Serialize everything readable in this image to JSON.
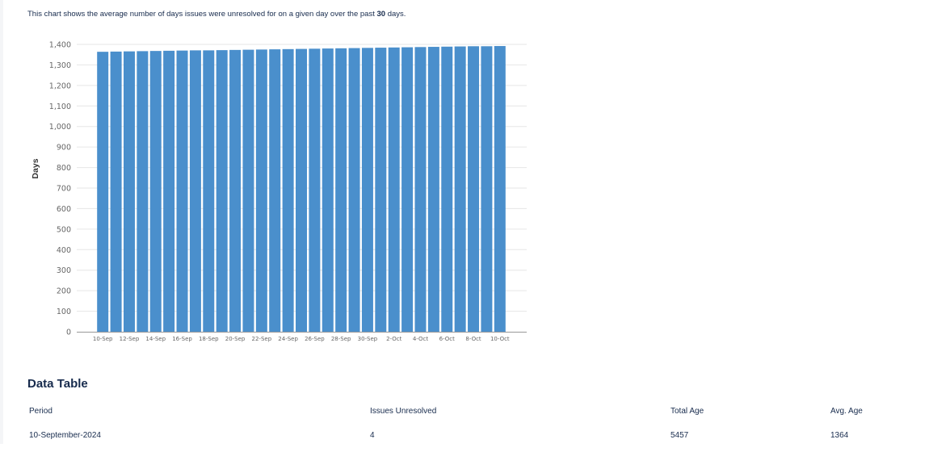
{
  "description": {
    "prefix": "This chart shows the average number of days issues were unresolved for on a given day over the past ",
    "bold": "30",
    "suffix": " days."
  },
  "colors": {
    "bar": "#4a8fcc",
    "grid": "#e6e6e6",
    "axis": "#999999",
    "text": "#172b4d"
  },
  "chart_data": {
    "type": "bar",
    "title": "",
    "xlabel": "",
    "ylabel": "Days",
    "ylim": [
      0,
      1400
    ],
    "yticks": [
      0,
      100,
      200,
      300,
      400,
      500,
      600,
      700,
      800,
      900,
      1000,
      1100,
      1200,
      1300,
      1400
    ],
    "ytick_labels": [
      "0",
      "100",
      "200",
      "300",
      "400",
      "500",
      "600",
      "700",
      "800",
      "900",
      "1,000",
      "1,100",
      "1,200",
      "1,300",
      "1,400"
    ],
    "grid": true,
    "legend": null,
    "categories": [
      "10-Sep",
      "11-Sep",
      "12-Sep",
      "13-Sep",
      "14-Sep",
      "15-Sep",
      "16-Sep",
      "17-Sep",
      "18-Sep",
      "19-Sep",
      "20-Sep",
      "21-Sep",
      "22-Sep",
      "23-Sep",
      "24-Sep",
      "25-Sep",
      "26-Sep",
      "27-Sep",
      "28-Sep",
      "29-Sep",
      "30-Sep",
      "1-Oct",
      "2-Oct",
      "3-Oct",
      "4-Oct",
      "5-Oct",
      "6-Oct",
      "7-Oct",
      "8-Oct",
      "9-Oct",
      "10-Oct"
    ],
    "xtick_labels": [
      "10-Sep",
      "12-Sep",
      "14-Sep",
      "16-Sep",
      "18-Sep",
      "20-Sep",
      "22-Sep",
      "24-Sep",
      "26-Sep",
      "28-Sep",
      "30-Sep",
      "2-Oct",
      "4-Oct",
      "6-Oct",
      "8-Oct",
      "10-Oct"
    ],
    "values": [
      1364,
      1365,
      1366,
      1367,
      1368,
      1369,
      1370,
      1371,
      1371,
      1372,
      1373,
      1374,
      1375,
      1376,
      1377,
      1378,
      1379,
      1380,
      1381,
      1382,
      1383,
      1384,
      1385,
      1386,
      1387,
      1388,
      1389,
      1390,
      1391,
      1391,
      1392
    ]
  },
  "table": {
    "title": "Data Table",
    "columns": [
      "Period",
      "Issues Unresolved",
      "Total Age",
      "Avg. Age"
    ],
    "rows": [
      [
        "10-September-2024",
        "4",
        "5457",
        "1364"
      ]
    ]
  }
}
